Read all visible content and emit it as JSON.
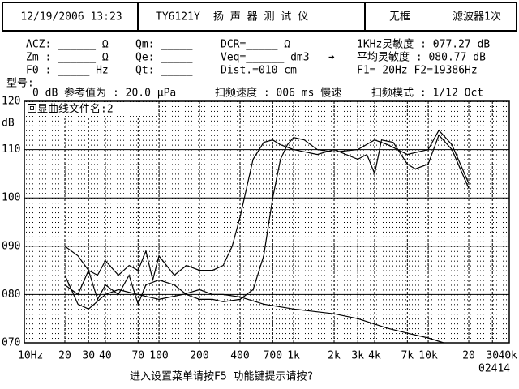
{
  "header": {
    "date": "12/19/2006 13:23",
    "model": "TY6121Y",
    "name": "扬 声 器 测 试 仪",
    "mode": "无框",
    "filter": "滤波器1次"
  },
  "params": {
    "acz": "ACZ: ______ Ω",
    "qm": "Qm: _____",
    "dcr": "DCR=_____ Ω",
    "sens_1k": "1KHz灵敏度 : 077.27 dB",
    "zm": "Zm : ______ Ω",
    "qe": "Qe: _____",
    "veq": "Veq=______ dm3",
    "arrow": "➔",
    "sens_avg": "平均灵敏度 : 080.77 dB",
    "f0": "F0 : _____ Hz",
    "qt": "Qt: _____",
    "dist": "Dist.=010 cm",
    "range": "F1=   20Hz  F2=19386Hz",
    "type_label": "型号:",
    "ref": "0 dB 参考值为 : 20.0 μPa",
    "speed": "扫频速度 : 006 ms 慢速",
    "sweep": "扫频模式 : 1/12 Oct"
  },
  "chart_data": {
    "type": "line",
    "file_label": "回显曲线文件名:2",
    "y_label": "dB",
    "xscale": "log",
    "xlim": [
      10,
      40000
    ],
    "ylim": [
      70,
      120
    ],
    "grid": true,
    "xticks": [
      {
        "value": 10,
        "label": "10Hz"
      },
      20,
      30,
      40,
      70,
      100,
      200,
      400,
      700,
      {
        "value": 1000,
        "label": "1k"
      },
      {
        "value": 2000,
        "label": "2k"
      },
      {
        "value": 3000,
        "label": "3k"
      },
      {
        "value": 4000,
        "label": "4k"
      },
      {
        "value": 7000,
        "label": "7k"
      },
      {
        "value": 10000,
        "label": "10k"
      },
      {
        "value": 20000,
        "label": "20"
      },
      {
        "value": 30000,
        "label": "30"
      },
      {
        "value": 40000,
        "label": "40k"
      }
    ],
    "yticks": [
      {
        "value": 70,
        "label": "070"
      },
      {
        "value": 80,
        "label": "080"
      },
      {
        "value": 90,
        "label": "090"
      },
      100,
      110,
      120
    ],
    "series": [
      {
        "color": "#000000",
        "x": [
          20,
          25,
          30,
          35,
          40,
          50,
          60,
          70,
          80,
          100,
          130,
          160,
          200,
          250,
          300,
          400,
          500,
          600,
          700,
          800,
          900,
          1000,
          1200,
          1500,
          2000,
          3000,
          4000,
          5000,
          7000,
          10000,
          12000,
          15000,
          20000
        ],
        "values": [
          82,
          80,
          85,
          79,
          82,
          80,
          84,
          78,
          82,
          83,
          82,
          80,
          79,
          79,
          78.5,
          79,
          81,
          88,
          100,
          108,
          111,
          112.5,
          112,
          110,
          109.5,
          110,
          112,
          111,
          109,
          110,
          114,
          111,
          103
        ]
      },
      {
        "color": "#000000",
        "x": [
          20,
          25,
          30,
          35,
          40,
          50,
          60,
          70,
          80,
          90,
          100,
          130,
          160,
          200,
          250,
          300,
          350,
          400,
          500,
          600,
          700,
          800,
          1000,
          1500,
          2000,
          3000,
          3500,
          4000,
          4500,
          5500,
          7000,
          8000,
          10000,
          12000,
          15000,
          20000
        ],
        "values": [
          90,
          88,
          85,
          84,
          87,
          84,
          86,
          85,
          89,
          83,
          88,
          84,
          86,
          85,
          85,
          86,
          90,
          96,
          108,
          111.5,
          112,
          111,
          110,
          109,
          110,
          108,
          109,
          105,
          112,
          111.5,
          107,
          106,
          107,
          113,
          110,
          102
        ]
      },
      {
        "color": "#000000",
        "x": [
          20,
          25,
          30,
          40,
          50,
          70,
          100,
          150,
          200,
          250,
          300,
          400,
          600,
          1000,
          2000,
          3000,
          5000,
          7000,
          10000,
          13000
        ],
        "values": [
          84,
          78,
          77,
          80,
          81,
          80,
          79,
          80,
          81,
          80,
          80,
          79.5,
          78,
          77,
          76,
          75,
          73,
          72,
          71,
          70
        ]
      }
    ]
  },
  "footer": {
    "hint": "进入设置菜单请按F5  功能键提示请按?",
    "code": "02414"
  }
}
